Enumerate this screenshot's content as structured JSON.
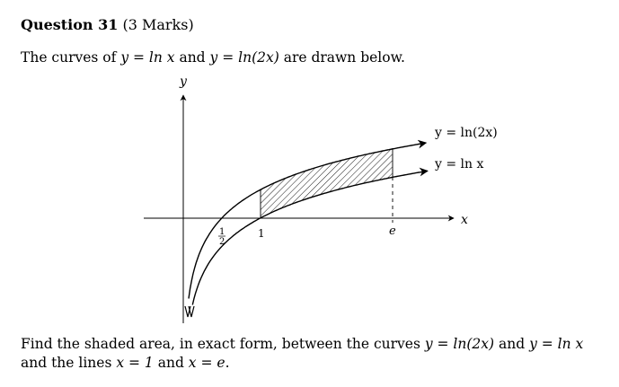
{
  "question": {
    "number_label": "Question 31",
    "marks_label": "(3 Marks)"
  },
  "intro": {
    "part1": "The curves of ",
    "math1": "y = ln x",
    "part2": " and ",
    "math2": "y = ln(2x)",
    "part3": " are drawn below."
  },
  "figure": {
    "axis_y_label": "y",
    "axis_x_label": "x",
    "curve_top_label": "y = ln(2x)",
    "curve_bottom_label": "y = ln x",
    "tick_half_numerator": "1",
    "tick_half_denominator": "2",
    "tick_one_label": "1",
    "tick_e_label": "e",
    "shaded_region": {
      "x_from": 1,
      "x_to": 2.718
    }
  },
  "prompt": {
    "part1": "Find the shaded area, in exact form, between the curves ",
    "math1": "y = ln(2x)",
    "part2": " and ",
    "math2": "y = ln x",
    "part3": " and the lines ",
    "math3": "x = 1",
    "part4": " and ",
    "math4": "x = e",
    "part5": "."
  }
}
